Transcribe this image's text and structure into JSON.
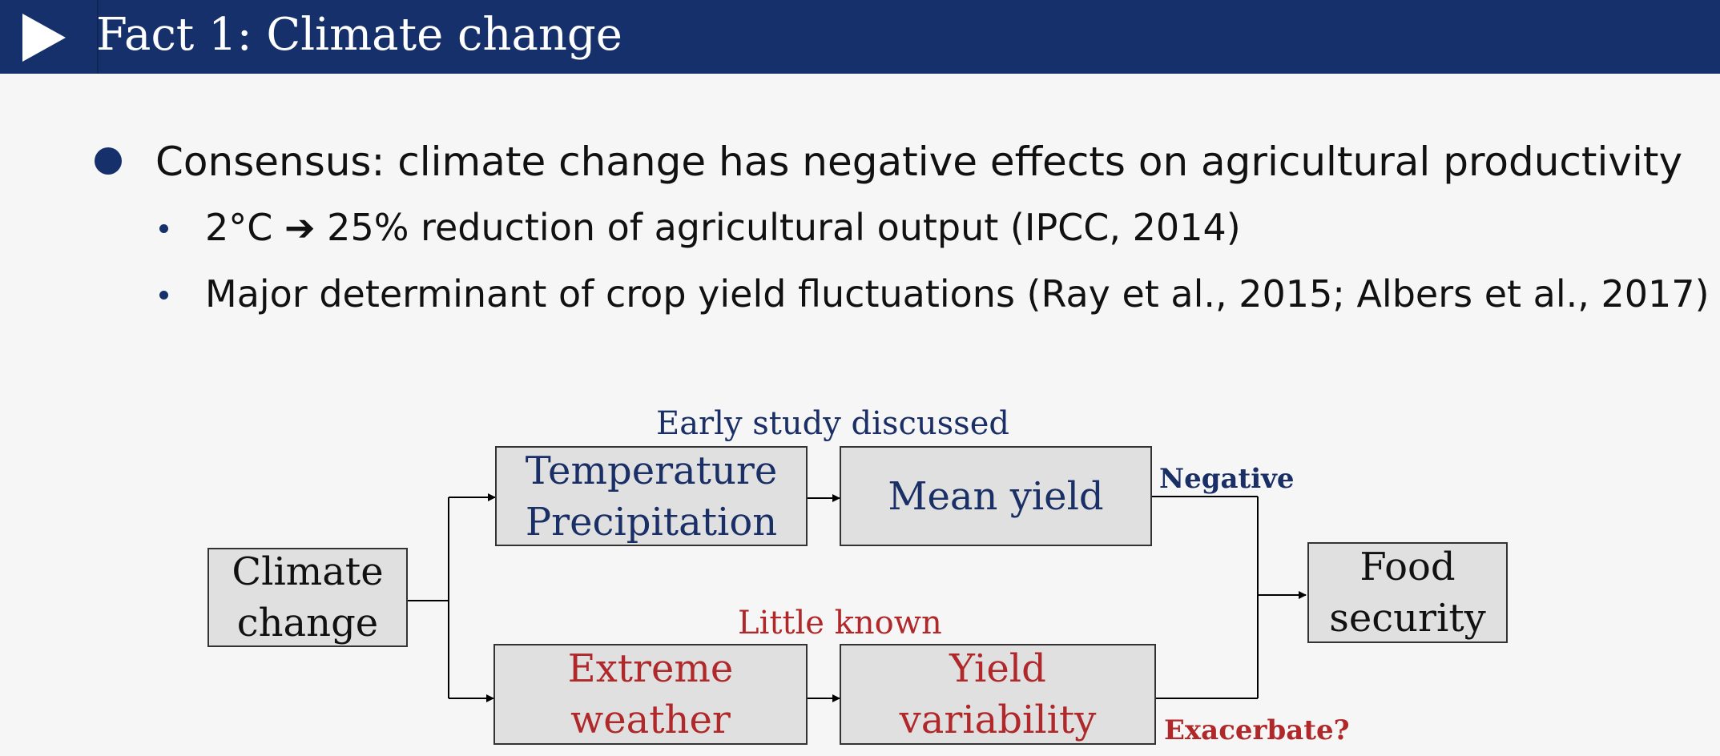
{
  "header": {
    "title": "Fact 1: Climate change"
  },
  "bullets": {
    "main": "Consensus: climate change has negative effects on agricultural productivity",
    "sub": [
      "2°C ➔ 25% reduction of agricultural output (IPCC, 2014)",
      "Major determinant of crop yield fluctuations (Ray et al., 2015; Albers et al., 2017)"
    ]
  },
  "diagram": {
    "climate_change": "Climate\nchange",
    "temperature_precipitation": "Temperature\nPrecipitation",
    "mean_yield": "Mean yield",
    "extreme_weather": "Extreme\nweather",
    "yield_variability": "Yield\nvariability",
    "food_security": "Food\nsecurity",
    "label_early_study": "Early study discussed",
    "label_little_known": "Little known",
    "label_negative": "Negative",
    "label_exacerbate": "Exacerbate?"
  },
  "colors": {
    "header_bg": "#15306b",
    "navy_text": "#1a2f66",
    "red_text": "#b0282a",
    "box_fill": "#e0e0e0"
  },
  "icons": {
    "play": "play-icon"
  }
}
